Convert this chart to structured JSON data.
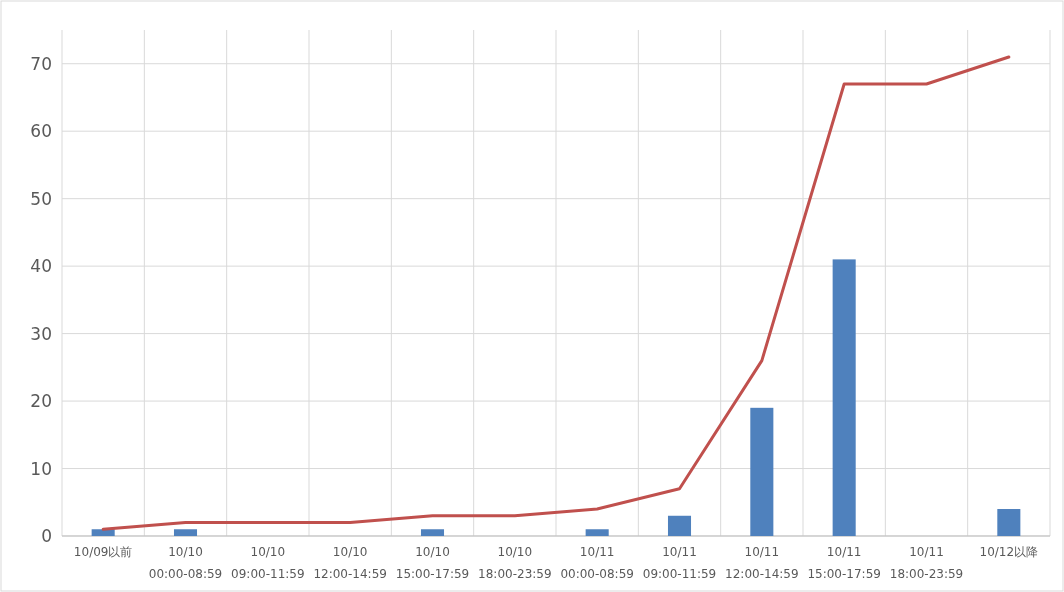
{
  "chart_data": {
    "type": "bar",
    "categories": [
      "10/09以前",
      "10/10\n00:00-08:59",
      "10/10\n09:00-11:59",
      "10/10\n12:00-14:59",
      "10/10\n15:00-17:59",
      "10/10\n18:00-23:59",
      "10/11\n00:00-08:59",
      "10/11\n09:00-11:59",
      "10/11\n12:00-14:59",
      "10/11\n15:00-17:59",
      "10/11\n18:00-23:59",
      "10/12以降"
    ],
    "series": [
      {
        "color": "#4f81bd",
        "values": [
          1,
          1,
          0,
          0,
          1,
          0,
          1,
          3,
          19,
          41,
          0,
          4
        ]
      },
      {
        "type": "line",
        "color": "#c0504d",
        "values": [
          1,
          2,
          2,
          2,
          3,
          3,
          4,
          7,
          26,
          67,
          67,
          71
        ]
      }
    ],
    "ylim": [
      0,
      75
    ],
    "yticks": [
      0,
      10,
      20,
      30,
      40,
      50,
      60,
      70
    ],
    "grid": true
  }
}
